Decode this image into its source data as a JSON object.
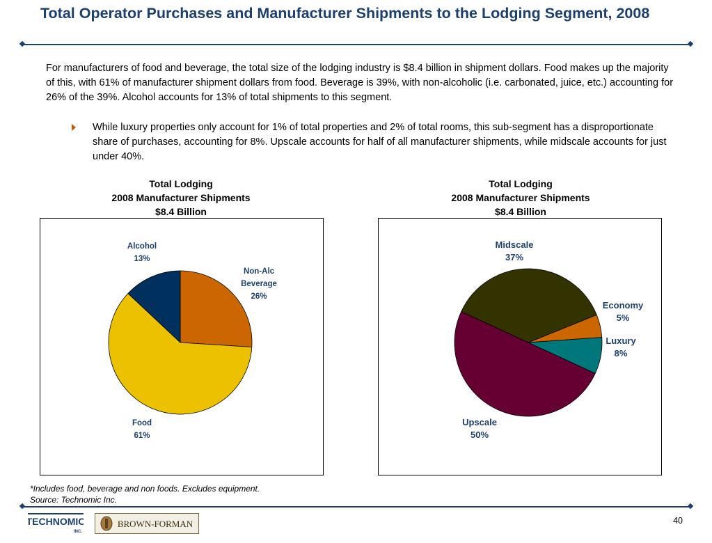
{
  "slide": {
    "title": "Total Operator Purchases and Manufacturer Shipments to the Lodging Segment, 2008",
    "intro": "For manufacturers of food and beverage, the total size of the lodging industry is $8.4 billion in shipment dollars. Food makes up the majority of this, with 61% of manufacturer shipment dollars from food. Beverage is 39%, with non-alcoholic (i.e. carbonated, juice, etc.) accounting for 26% of the 39%. Alcohol accounts for 13% of total shipments to this segment.",
    "bullet": "While luxury properties only account for 1% of total properties and 2% of total rooms, this sub-segment has a disproportionate share of purchases, accounting for 8%. Upscale accounts for half of all manufacturer shipments, while midscale accounts for just under 40%.",
    "footnote_line1": "*Includes food, beverage and non foods. Excludes equipment.",
    "footnote_line2": "Source: Technomic Inc.",
    "page_number": "40",
    "logo_left_text": "TECHNOMIC",
    "logo_left_sub": "INC.",
    "logo_right_text": "BROWN-FORMAN"
  },
  "colors": {
    "title": "#1d3f6e",
    "food": "#ecc100",
    "non_alc": "#cc6600",
    "alcohol": "#00305e",
    "midscale": "#333300",
    "economy": "#cc6600",
    "luxury": "#00777a",
    "upscale": "#660033"
  },
  "chart_data": [
    {
      "type": "pie",
      "title_line1": "Total Lodging",
      "title_line2": "2008 Manufacturer Shipments",
      "title_line3": "$8.4 Billion",
      "slices": [
        {
          "label": "Non-Alc Beverage",
          "label_line1": "Non-Alc",
          "label_line2": "Beverage",
          "value": 26,
          "value_label": "26%",
          "color": "#cc6600"
        },
        {
          "label": "Food",
          "value": 61,
          "value_label": "61%",
          "color": "#ecc100"
        },
        {
          "label": "Alcohol",
          "value": 13,
          "value_label": "13%",
          "color": "#00305e"
        }
      ]
    },
    {
      "type": "pie",
      "title_line1": "Total Lodging",
      "title_line2": "2008 Manufacturer Shipments",
      "title_line3": "$8.4 Billion",
      "slices": [
        {
          "label": "Economy",
          "value": 5,
          "value_label": "5%",
          "color": "#cc6600"
        },
        {
          "label": "Luxury",
          "value": 8,
          "value_label": "8%",
          "color": "#00777a"
        },
        {
          "label": "Upscale",
          "value": 50,
          "value_label": "50%",
          "color": "#660033"
        },
        {
          "label": "Midscale",
          "value": 37,
          "value_label": "37%",
          "color": "#333300"
        }
      ]
    }
  ]
}
